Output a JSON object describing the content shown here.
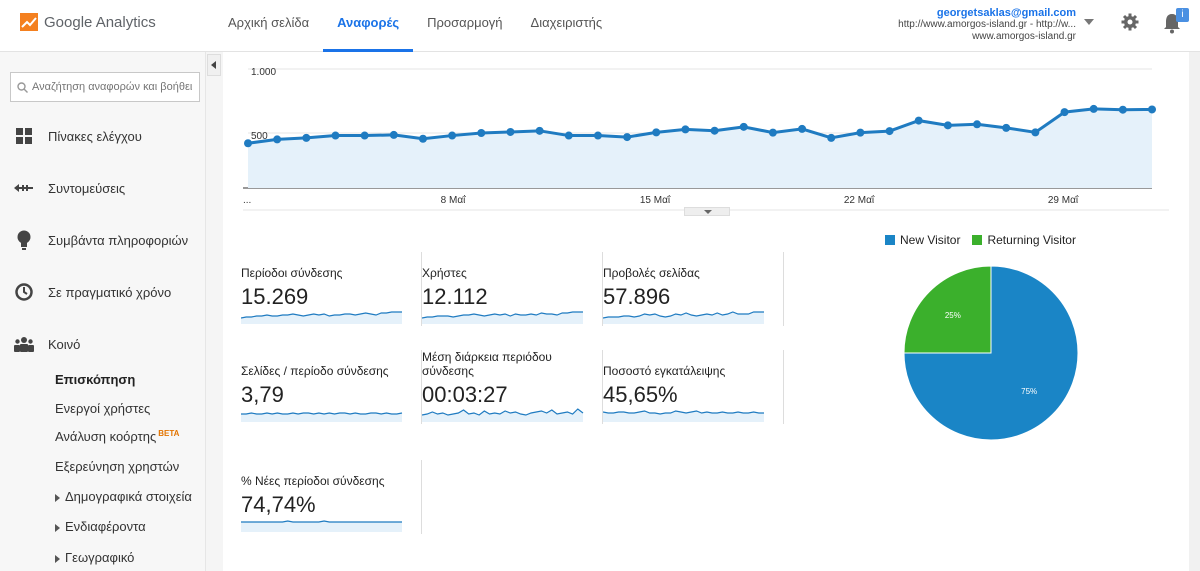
{
  "header": {
    "logo_text": "Google Analytics",
    "nav": [
      {
        "label": "Αρχική σελίδα",
        "active": false
      },
      {
        "label": "Αναφορές",
        "active": true
      },
      {
        "label": "Προσαρμογή",
        "active": false
      },
      {
        "label": "Διαχειριστής",
        "active": false
      }
    ],
    "account_email": "georgetsaklas@gmail.com",
    "account_property": "http://www.amorgos-island.gr - http://w...",
    "account_view": "www.amorgos-island.gr",
    "notification_badge": "i",
    "icons": [
      "analytics-logo-icon",
      "caret-down-icon",
      "gear-icon",
      "bell-icon"
    ]
  },
  "sidebar": {
    "search_placeholder": "Αναζήτηση αναφορών και βοήθει",
    "items": [
      {
        "label": "Πίνακες ελέγχου",
        "icon": "dashboard-icon"
      },
      {
        "label": "Συντομεύσεις",
        "icon": "shortcut-icon"
      },
      {
        "label": "Συμβάντα πληροφοριών",
        "icon": "lightbulb-icon"
      },
      {
        "label": "Σε πραγματικό χρόνο",
        "icon": "clock-icon"
      },
      {
        "label": "Κοινό",
        "icon": "audience-icon"
      }
    ],
    "sub_items": [
      {
        "label": "Επισκόπηση",
        "bold": true
      },
      {
        "label": "Ενεργοί χρήστες"
      },
      {
        "label": "Ανάλυση κοόρτης",
        "badge": "BETA"
      },
      {
        "label": "Εξερεύνηση χρηστών"
      },
      {
        "label": "Δημογραφικά στοιχεία",
        "expandable": true
      },
      {
        "label": "Ενδιαφέροντα",
        "expandable": true
      },
      {
        "label": "Γεωγραφικό",
        "expandable": true
      }
    ]
  },
  "chart_data": {
    "type": "area",
    "y_tick_labels": [
      "1.000",
      "500"
    ],
    "x_tick_labels": [
      "...",
      "8 Μαΐ",
      "15 Μαΐ",
      "22 Μαΐ",
      "29 Μαΐ"
    ],
    "values": [
      420,
      450,
      462,
      480,
      480,
      485,
      455,
      480,
      500,
      508,
      517,
      480,
      480,
      468,
      505,
      528,
      518,
      548,
      503,
      532,
      462,
      503,
      515,
      597,
      560,
      568,
      540,
      505,
      663,
      688,
      682,
      684
    ],
    "ylim": [
      0,
      1000
    ],
    "color": "#1f7bc1",
    "fill": "#e5f1fa"
  },
  "metrics": [
    {
      "label": "Περίοδοι σύνδεσης",
      "value": "15.269"
    },
    {
      "label": "Χρήστες",
      "value": "12.112"
    },
    {
      "label": "Προβολές σελίδας",
      "value": "57.896"
    },
    {
      "label": "Σελίδες / περίοδο σύνδεσης",
      "value": "3,79"
    },
    {
      "label": "Μέση διάρκεια περιόδου σύνδεσης",
      "value": "00:03:27"
    },
    {
      "label": "Ποσοστό εγκατάλειψης",
      "value": "45,65%"
    },
    {
      "label": "% Νέες περίοδοι σύνδεσης",
      "value": "74,74%"
    }
  ],
  "pie": {
    "legend": [
      {
        "name": "New Visitor",
        "color": "#1a85c6"
      },
      {
        "name": "Returning Visitor",
        "color": "#3bb02c"
      }
    ],
    "slices": [
      {
        "name": "New Visitor",
        "value": 75,
        "label": "75%",
        "color": "#1a85c6"
      },
      {
        "name": "Returning Visitor",
        "value": 25,
        "label": "25%",
        "color": "#3bb02c"
      }
    ]
  }
}
